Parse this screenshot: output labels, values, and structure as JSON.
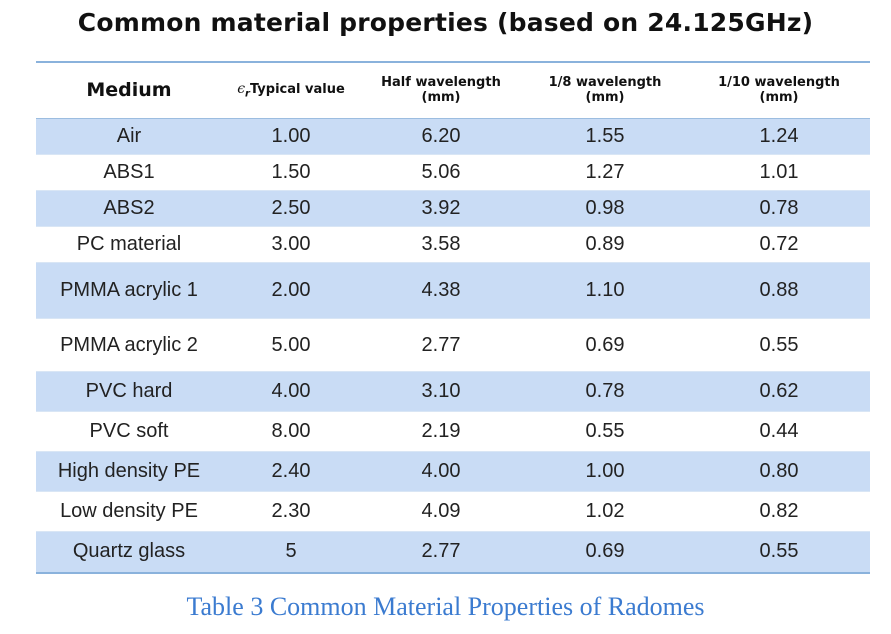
{
  "title": "Common material properties (based on 24.125GHz)",
  "header": {
    "medium": "Medium",
    "eps_symbol": "ϵ",
    "eps_sub": "r",
    "eps_label": "Typical value",
    "half_line1": "Half wavelength",
    "half_line2": "(mm)",
    "eighth_line1": "1/8 wavelength",
    "eighth_line2": "(mm)",
    "tenth_line1": "1/10 wavelength",
    "tenth_line2": "(mm)"
  },
  "rows": [
    {
      "medium": "Air",
      "er": "1.00",
      "half": "6.20",
      "eighth": "1.55",
      "tenth": "1.24"
    },
    {
      "medium": "ABS1",
      "er": "1.50",
      "half": "5.06",
      "eighth": "1.27",
      "tenth": "1.01"
    },
    {
      "medium": "ABS2",
      "er": "2.50",
      "half": "3.92",
      "eighth": "0.98",
      "tenth": "0.78"
    },
    {
      "medium": "PC material",
      "er": "3.00",
      "half": "3.58",
      "eighth": "0.89",
      "tenth": "0.72"
    },
    {
      "medium": "PMMA acrylic 1",
      "er": "2.00",
      "half": "4.38",
      "eighth": "1.10",
      "tenth": "0.88"
    },
    {
      "medium": "PMMA acrylic 2",
      "er": "5.00",
      "half": "2.77",
      "eighth": "0.69",
      "tenth": "0.55"
    },
    {
      "medium": "PVC hard",
      "er": "4.00",
      "half": "3.10",
      "eighth": "0.78",
      "tenth": "0.62"
    },
    {
      "medium": "PVC soft",
      "er": "8.00",
      "half": "2.19",
      "eighth": "0.55",
      "tenth": "0.44"
    },
    {
      "medium": "High density PE",
      "er": "2.40",
      "half": "4.00",
      "eighth": "1.00",
      "tenth": "0.80"
    },
    {
      "medium": "Low density PE",
      "er": "2.30",
      "half": "4.09",
      "eighth": "1.02",
      "tenth": "0.82"
    },
    {
      "medium": "Quartz glass",
      "er": "5",
      "half": "2.77",
      "eighth": "0.69",
      "tenth": "0.55"
    }
  ],
  "caption": "Table 3 Common Material Properties of Radomes",
  "colors": {
    "row_shade": "#c9dcf5",
    "rule": "#8ab2dc",
    "caption": "#3b7bd0"
  }
}
